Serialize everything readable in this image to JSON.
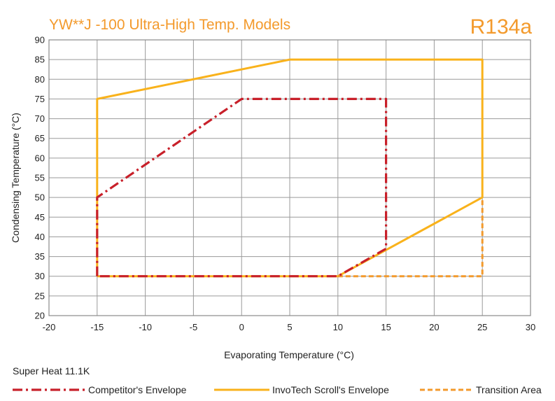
{
  "chart_data": {
    "type": "line",
    "title": "YW**J -100 Ultra-High Temp. Models",
    "refrigerant": "R134a",
    "xlabel": "Evaporating Temperature (°C)",
    "ylabel": "Condensing Temperature (°C)",
    "xlim": [
      -20,
      30
    ],
    "ylim": [
      20,
      90
    ],
    "xticks": [
      -20,
      -15,
      -10,
      -5,
      0,
      5,
      10,
      15,
      20,
      25,
      30
    ],
    "yticks": [
      20,
      25,
      30,
      35,
      40,
      45,
      50,
      55,
      60,
      65,
      70,
      75,
      80,
      85,
      90
    ],
    "grid": true,
    "note": "Super Heat 11.1K",
    "legend_position": "bottom",
    "series": [
      {
        "name": "Competitor's Envelope",
        "color": "#c8202a",
        "style": "dashdot",
        "points": [
          [
            -15,
            30
          ],
          [
            -15,
            50
          ],
          [
            0,
            75
          ],
          [
            15,
            75
          ],
          [
            15,
            37
          ],
          [
            10,
            30
          ],
          [
            -15,
            30
          ]
        ]
      },
      {
        "name": "InvoTech Scroll's Envelope",
        "color": "#f9b21b",
        "style": "solid",
        "points": [
          [
            -15,
            30
          ],
          [
            -15,
            75
          ],
          [
            5,
            85
          ],
          [
            25,
            85
          ],
          [
            25,
            50
          ],
          [
            10,
            30
          ],
          [
            -15,
            30
          ]
        ]
      },
      {
        "name": "Transition Area",
        "color": "#f39a2c",
        "style": "dashed",
        "points": [
          [
            10,
            30
          ],
          [
            25,
            30
          ],
          [
            25,
            50
          ]
        ]
      }
    ]
  }
}
